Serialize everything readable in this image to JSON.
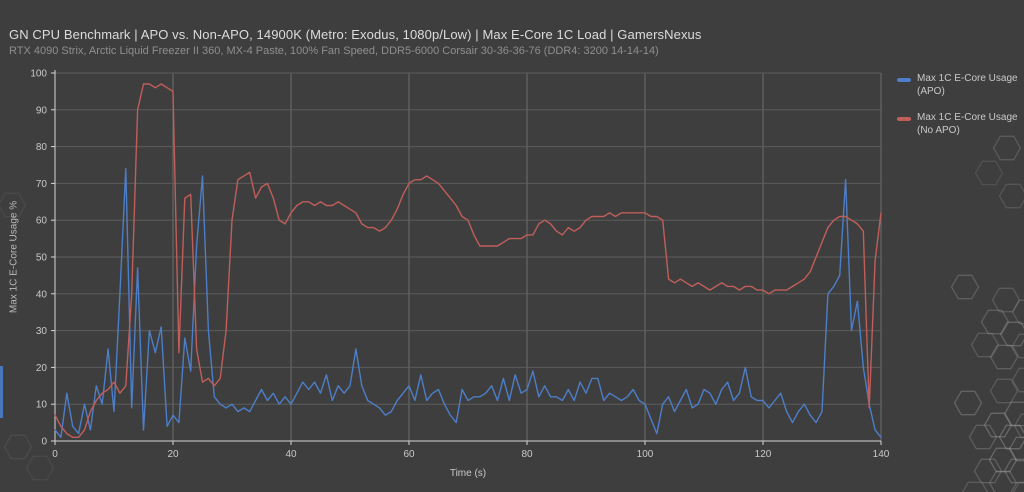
{
  "header": {
    "title": "GN CPU Benchmark | APO vs. Non-APO, 14900K (Metro: Exodus, 1080p/Low) | Max E-Core 1C Load | GamersNexus",
    "subtitle": "RTX 4090 Strix, Arctic Liquid Freezer II 360, MX-4 Paste, 100% Fan Speed, DDR5-6000 Corsair 30-36-36-76 (DDR4: 3200 14-14-14)"
  },
  "legend": {
    "items": [
      {
        "label": "Max 1C E-Core Usage (APO)",
        "color": "#4d7ec8"
      },
      {
        "label": "Max 1C E-Core Usage (No APO)",
        "color": "#c05e5a"
      }
    ],
    "position": "top-right"
  },
  "colors": {
    "background": "#3e3e3e",
    "axis": "#d6d6d6",
    "grid_h": "#5c5c5c",
    "grid_v": "#6e6e6e",
    "tick_text": "#c9c9c9",
    "title_text": "#dcdcdc",
    "subtitle_text": "#8f8f8f",
    "legend_text": "#c9c9c9",
    "hex_stroke": "#9a9a9a",
    "series_blue": "#4d7ec8",
    "series_red": "#c05e5a",
    "edge_artifact": "#4b7dc8"
  },
  "chart_data": {
    "type": "line",
    "title": "GN CPU Benchmark | APO vs. Non-APO, 14900K (Metro: Exodus, 1080p/Low) | Max E-Core 1C Load | GamersNexus",
    "subtitle": "RTX 4090 Strix, Arctic Liquid Freezer II 360, MX-4 Paste, 100% Fan Speed, DDR5-6000 Corsair 30-36-36-76 (DDR4: 3200 14-14-14)",
    "xlabel": "Time (s)",
    "ylabel": "Max 1C E-Core Usage %",
    "xlim": [
      0,
      140
    ],
    "ylim": [
      0,
      100
    ],
    "x_tick_step": 20,
    "y_tick_step": 10,
    "grid": true,
    "legend_position": "top-right",
    "x_start": 0,
    "x_step": 1,
    "series": [
      {
        "name": "Max 1C E-Core Usage (APO)",
        "color": "#4d7ec8",
        "values": [
          3,
          1,
          13,
          4,
          2,
          10,
          3,
          15,
          10,
          25,
          8,
          40,
          74,
          9,
          47,
          3,
          30,
          24,
          31,
          4,
          7,
          5,
          28,
          19,
          53,
          72,
          30,
          12,
          10,
          9,
          10,
          8,
          9,
          8,
          11,
          14,
          11,
          13,
          10,
          12,
          10,
          13,
          16,
          14,
          16,
          13,
          18,
          11,
          15,
          13,
          15,
          25,
          15,
          11,
          10,
          9,
          7,
          8,
          11,
          13,
          15,
          11,
          18,
          11,
          13,
          14,
          10,
          7,
          5,
          14,
          11,
          12,
          12,
          13,
          15,
          11,
          17,
          11,
          18,
          13,
          14,
          19,
          12,
          15,
          12,
          12,
          11,
          14,
          11,
          16,
          13,
          17,
          17,
          11,
          13,
          12,
          11,
          12,
          14,
          11,
          10,
          6,
          2,
          10,
          12,
          8,
          11,
          14,
          9,
          10,
          14,
          13,
          10,
          14,
          16,
          11,
          13,
          20,
          12,
          11,
          11,
          9,
          11,
          13,
          8,
          5,
          8,
          10,
          7,
          5,
          8,
          40,
          42,
          45,
          71,
          30,
          38,
          20,
          10,
          3,
          1
        ]
      },
      {
        "name": "Max 1C E-Core Usage (No APO)",
        "color": "#c05e5a",
        "values": [
          7,
          4,
          2,
          1,
          1,
          3,
          8,
          11,
          13,
          14,
          16,
          13,
          15,
          40,
          90,
          97,
          97,
          96,
          97,
          96,
          95,
          24,
          66,
          67,
          25,
          16,
          17,
          15,
          17,
          30,
          60,
          71,
          72,
          73,
          66,
          69,
          70,
          66,
          60,
          59,
          62,
          64,
          65,
          65,
          64,
          65,
          64,
          64,
          65,
          64,
          63,
          62,
          59,
          58,
          58,
          57,
          58,
          60,
          63,
          67,
          70,
          71,
          71,
          72,
          71,
          70,
          68,
          66,
          64,
          61,
          60,
          56,
          53,
          53,
          53,
          53,
          54,
          55,
          55,
          55,
          56,
          56,
          59,
          60,
          59,
          57,
          56,
          58,
          57,
          58,
          60,
          61,
          61,
          61,
          62,
          61,
          62,
          62,
          62,
          62,
          62,
          61,
          61,
          60,
          44,
          43,
          44,
          43,
          42,
          43,
          42,
          41,
          42,
          43,
          42,
          42,
          41,
          42,
          42,
          41,
          41,
          40,
          41,
          41,
          41,
          42,
          43,
          44,
          46,
          50,
          54,
          58,
          60,
          61,
          61,
          60,
          59,
          57,
          9,
          49,
          62
        ]
      }
    ]
  }
}
